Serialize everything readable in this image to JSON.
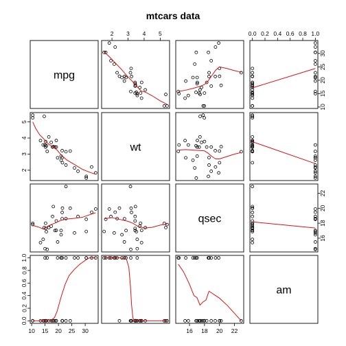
{
  "chart_data": {
    "type": "scatter",
    "title": "mtcars data",
    "variables": [
      "mpg",
      "wt",
      "qsec",
      "am"
    ],
    "ranges": {
      "mpg": [
        10.4,
        33.9
      ],
      "wt": [
        1.513,
        5.424
      ],
      "qsec": [
        14.5,
        22.9
      ],
      "am": [
        0,
        1
      ]
    },
    "ticks": {
      "mpg": [
        10,
        15,
        20,
        25,
        30
      ],
      "wt": [
        2,
        3,
        4,
        5
      ],
      "qsec": [
        16,
        18,
        20,
        22
      ],
      "am": [
        0.0,
        0.2,
        0.4,
        0.6,
        0.8,
        1.0
      ]
    },
    "tick_labels": {
      "mpg": [
        "10",
        "15",
        "20",
        "25",
        "30"
      ],
      "wt": [
        "2",
        "3",
        "4",
        "5"
      ],
      "qsec": [
        "16",
        "18",
        "20",
        "22"
      ],
      "am": [
        "0.0",
        "0.2",
        "0.4",
        "0.6",
        "0.8",
        "1.0"
      ]
    },
    "observations": {
      "mpg": [
        21.0,
        21.0,
        22.8,
        21.4,
        18.7,
        18.1,
        14.3,
        24.4,
        22.8,
        19.2,
        17.8,
        16.4,
        17.3,
        15.2,
        10.4,
        10.4,
        14.7,
        32.4,
        30.4,
        33.9,
        21.5,
        15.5,
        15.2,
        13.3,
        19.2,
        27.3,
        26.0,
        30.4,
        15.8,
        19.7,
        15.0,
        21.4
      ],
      "wt": [
        2.62,
        2.875,
        2.32,
        3.215,
        3.44,
        3.46,
        3.57,
        3.19,
        3.15,
        3.44,
        3.44,
        4.07,
        3.73,
        3.78,
        5.25,
        5.424,
        5.345,
        2.2,
        1.615,
        1.835,
        2.465,
        3.52,
        3.435,
        3.84,
        3.845,
        1.935,
        2.14,
        1.513,
        3.17,
        2.77,
        3.57,
        2.78
      ],
      "qsec": [
        16.46,
        17.02,
        18.61,
        19.44,
        17.02,
        20.22,
        15.84,
        20.0,
        22.9,
        18.3,
        18.9,
        17.4,
        17.6,
        18.0,
        17.98,
        17.82,
        17.42,
        19.47,
        18.52,
        19.9,
        20.01,
        16.87,
        17.3,
        15.41,
        17.05,
        18.9,
        16.7,
        16.9,
        14.5,
        15.5,
        14.6,
        18.6
      ],
      "am": [
        1,
        1,
        1,
        0,
        0,
        0,
        0,
        0,
        0,
        0,
        0,
        0,
        0,
        0,
        0,
        0,
        0,
        1,
        1,
        1,
        0,
        0,
        0,
        0,
        0,
        1,
        1,
        1,
        1,
        1,
        1,
        1
      ]
    },
    "smoother_color": "#e01010",
    "point_color": "#000000",
    "smoothers": [
      {
        "x": "wt",
        "y": "mpg",
        "points": [
          [
            1.513,
            30.6
          ],
          [
            1.8,
            29.0
          ],
          [
            2.2,
            26.5
          ],
          [
            2.6,
            24.0
          ],
          [
            3.0,
            21.2
          ],
          [
            3.2,
            20.0
          ],
          [
            3.44,
            18.5
          ],
          [
            3.8,
            16.0
          ],
          [
            4.1,
            15.5
          ],
          [
            4.5,
            14.2
          ],
          [
            5.0,
            12.3
          ],
          [
            5.424,
            11.0
          ]
        ]
      },
      {
        "x": "qsec",
        "y": "mpg",
        "points": [
          [
            14.5,
            15.8
          ],
          [
            15.5,
            16.3
          ],
          [
            16.5,
            17.0
          ],
          [
            17.0,
            17.4
          ],
          [
            17.5,
            17.8
          ],
          [
            18.0,
            18.4
          ],
          [
            18.5,
            19.8
          ],
          [
            19.0,
            21.8
          ],
          [
            19.5,
            23.8
          ],
          [
            20.0,
            25.0
          ],
          [
            21.0,
            24.4
          ],
          [
            22.0,
            23.6
          ],
          [
            22.9,
            23.0
          ]
        ]
      },
      {
        "x": "am",
        "y": "mpg",
        "points": [
          [
            0,
            17.15
          ],
          [
            1,
            24.39
          ]
        ]
      },
      {
        "x": "mpg",
        "y": "wt",
        "points": [
          [
            10.4,
            5.0
          ],
          [
            11.5,
            4.6
          ],
          [
            13.0,
            4.2
          ],
          [
            14.5,
            3.95
          ],
          [
            15.5,
            3.75
          ],
          [
            16.5,
            3.6
          ],
          [
            18.0,
            3.45
          ],
          [
            19.5,
            3.25
          ],
          [
            21.0,
            2.95
          ],
          [
            23.0,
            2.65
          ],
          [
            26.0,
            2.35
          ],
          [
            29.0,
            2.05
          ],
          [
            32.0,
            1.85
          ],
          [
            33.9,
            1.75
          ]
        ]
      },
      {
        "x": "qsec",
        "y": "wt",
        "points": [
          [
            14.5,
            3.25
          ],
          [
            15.5,
            3.28
          ],
          [
            16.5,
            3.25
          ],
          [
            17.5,
            3.22
          ],
          [
            18.0,
            3.2
          ],
          [
            18.5,
            3.05
          ],
          [
            19.0,
            2.85
          ],
          [
            19.5,
            2.7
          ],
          [
            20.0,
            2.7
          ],
          [
            21.0,
            2.85
          ],
          [
            22.0,
            3.0
          ],
          [
            22.9,
            3.1
          ]
        ]
      },
      {
        "x": "am",
        "y": "wt",
        "points": [
          [
            0,
            3.769
          ],
          [
            1,
            2.411
          ]
        ]
      },
      {
        "x": "mpg",
        "y": "qsec",
        "points": [
          [
            10.4,
            17.7
          ],
          [
            12.5,
            17.5
          ],
          [
            14.5,
            17.2
          ],
          [
            16.0,
            17.6
          ],
          [
            17.5,
            17.85
          ],
          [
            19.0,
            18.05
          ],
          [
            21.0,
            18.4
          ],
          [
            23.0,
            18.55
          ],
          [
            26.0,
            18.65
          ],
          [
            29.0,
            18.8
          ],
          [
            31.0,
            19.05
          ],
          [
            33.9,
            19.4
          ]
        ]
      },
      {
        "x": "wt",
        "y": "qsec",
        "points": [
          [
            1.513,
            18.6
          ],
          [
            2.0,
            18.75
          ],
          [
            2.5,
            18.5
          ],
          [
            3.0,
            18.25
          ],
          [
            3.3,
            18.0
          ],
          [
            3.6,
            17.6
          ],
          [
            4.0,
            17.35
          ],
          [
            4.5,
            17.45
          ],
          [
            5.0,
            17.75
          ],
          [
            5.424,
            17.9
          ]
        ]
      },
      {
        "x": "am",
        "y": "qsec",
        "points": [
          [
            0,
            18.18
          ],
          [
            1,
            17.36
          ]
        ]
      },
      {
        "x": "mpg",
        "y": "am",
        "points": [
          [
            10.4,
            0
          ],
          [
            14.5,
            0
          ],
          [
            17.0,
            0
          ],
          [
            18.5,
            0.05
          ],
          [
            19.5,
            0.15
          ],
          [
            21.0,
            0.38
          ],
          [
            22.5,
            0.58
          ],
          [
            24.0,
            0.72
          ],
          [
            26.0,
            0.82
          ],
          [
            28.0,
            0.9
          ],
          [
            30.0,
            0.96
          ],
          [
            31.5,
            1.0
          ],
          [
            33.9,
            1.0
          ]
        ]
      },
      {
        "x": "wt",
        "y": "am",
        "points": [
          [
            1.513,
            1.0
          ],
          [
            2.5,
            1.0
          ],
          [
            2.9,
            0.98
          ],
          [
            3.05,
            0.85
          ],
          [
            3.15,
            0.55
          ],
          [
            3.22,
            0.25
          ],
          [
            3.3,
            0.05
          ],
          [
            3.38,
            0
          ],
          [
            4.0,
            0
          ],
          [
            5.424,
            0
          ]
        ]
      },
      {
        "x": "qsec",
        "y": "am",
        "points": [
          [
            14.5,
            0.9
          ],
          [
            15.2,
            0.78
          ],
          [
            16.0,
            0.58
          ],
          [
            16.6,
            0.4
          ],
          [
            17.0,
            0.37
          ],
          [
            17.4,
            0.25
          ],
          [
            17.8,
            0.3
          ],
          [
            18.2,
            0.33
          ],
          [
            18.6,
            0.47
          ],
          [
            19.0,
            0.44
          ],
          [
            19.5,
            0.4
          ],
          [
            20.0,
            0.36
          ],
          [
            21.0,
            0.25
          ],
          [
            22.0,
            0.12
          ],
          [
            22.9,
            0
          ]
        ]
      }
    ]
  }
}
